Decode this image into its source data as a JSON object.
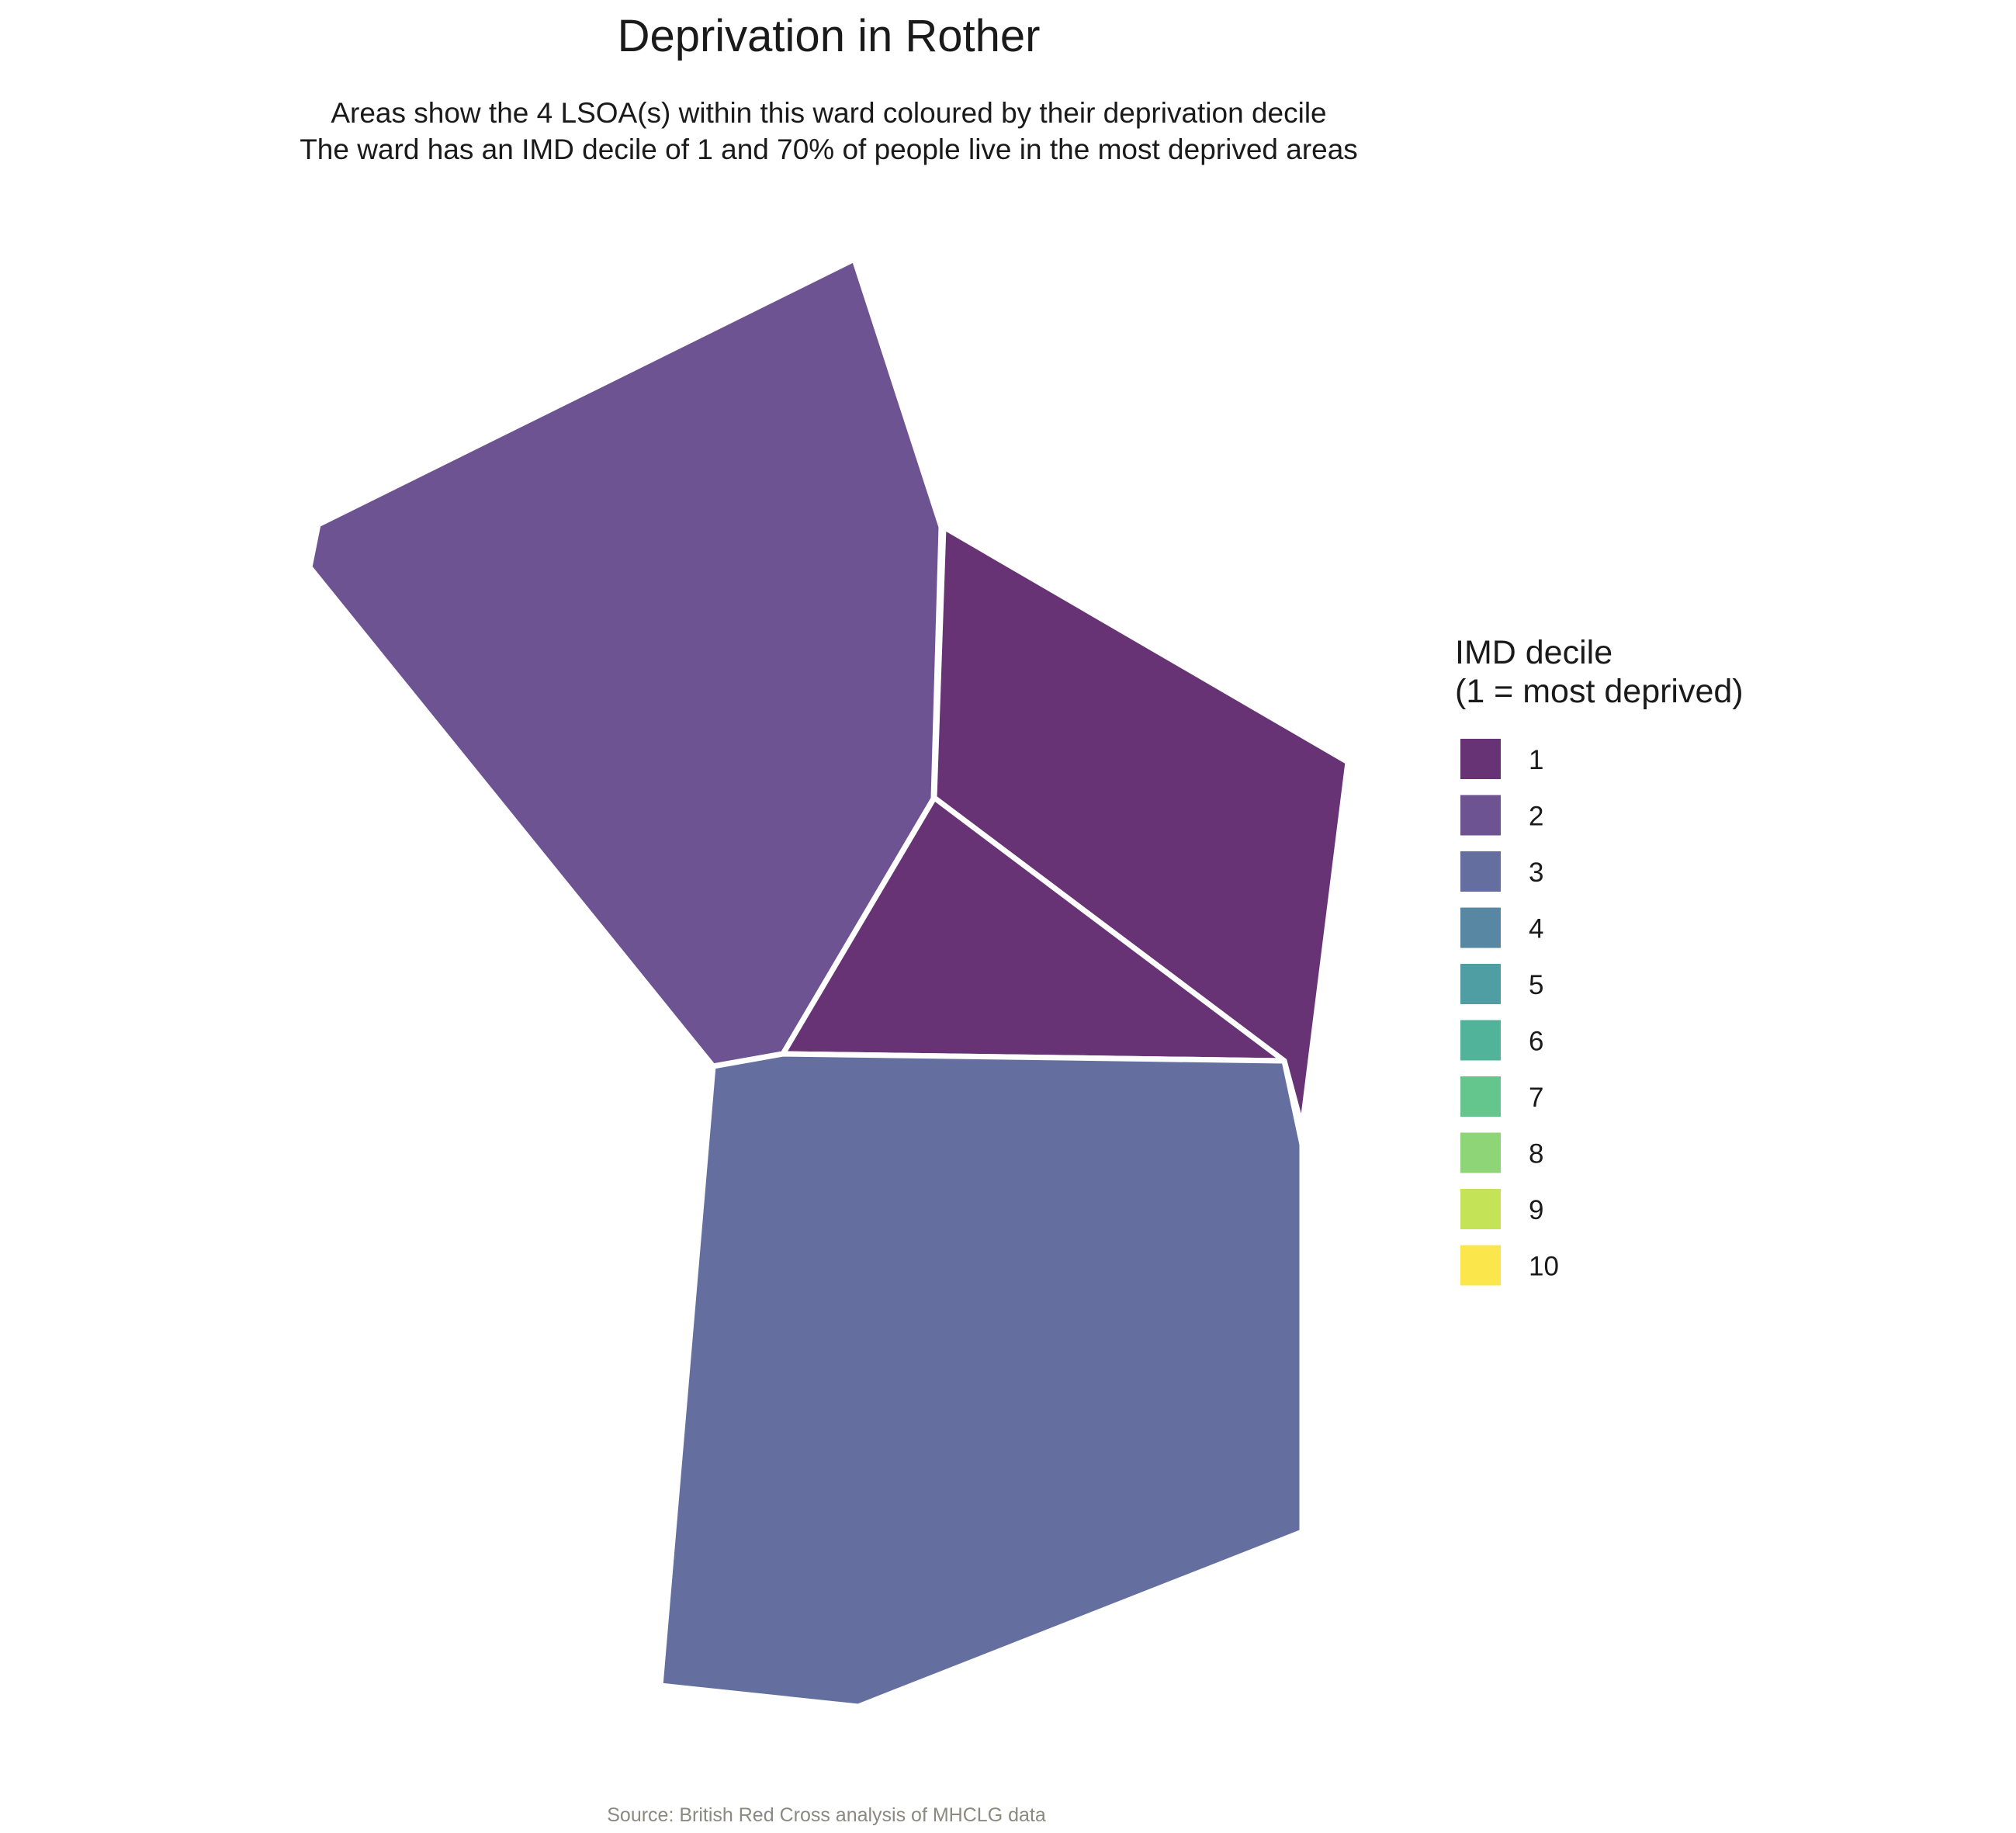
{
  "title": "Deprivation in Rother",
  "subtitle_lines": [
    "Areas show the 4 LSOA(s) within this ward coloured by their deprivation decile",
    "The ward has an IMD decile of 1 and 70% of people live in the most deprived areas"
  ],
  "caption": "Source: British Red Cross analysis of MHCLG data",
  "legend": {
    "title_lines": [
      "IMD decile",
      "(1 = most deprived)"
    ],
    "items": [
      {
        "label": "1",
        "color": "#683375"
      },
      {
        "label": "2",
        "color": "#6d5392"
      },
      {
        "label": "3",
        "color": "#646fa0"
      },
      {
        "label": "4",
        "color": "#5887a4"
      },
      {
        "label": "5",
        "color": "#4f9ea4"
      },
      {
        "label": "6",
        "color": "#52b39b"
      },
      {
        "label": "7",
        "color": "#65c68d"
      },
      {
        "label": "8",
        "color": "#8dd576"
      },
      {
        "label": "9",
        "color": "#c4e357"
      },
      {
        "label": "10",
        "color": "#fbe64c"
      }
    ]
  },
  "map": {
    "areas": [
      {
        "name": "LSOA north-west",
        "decile": 2
      },
      {
        "name": "LSOA north-east",
        "decile": 1
      },
      {
        "name": "LSOA central",
        "decile": 1
      },
      {
        "name": "LSOA south",
        "decile": 3
      }
    ]
  }
}
